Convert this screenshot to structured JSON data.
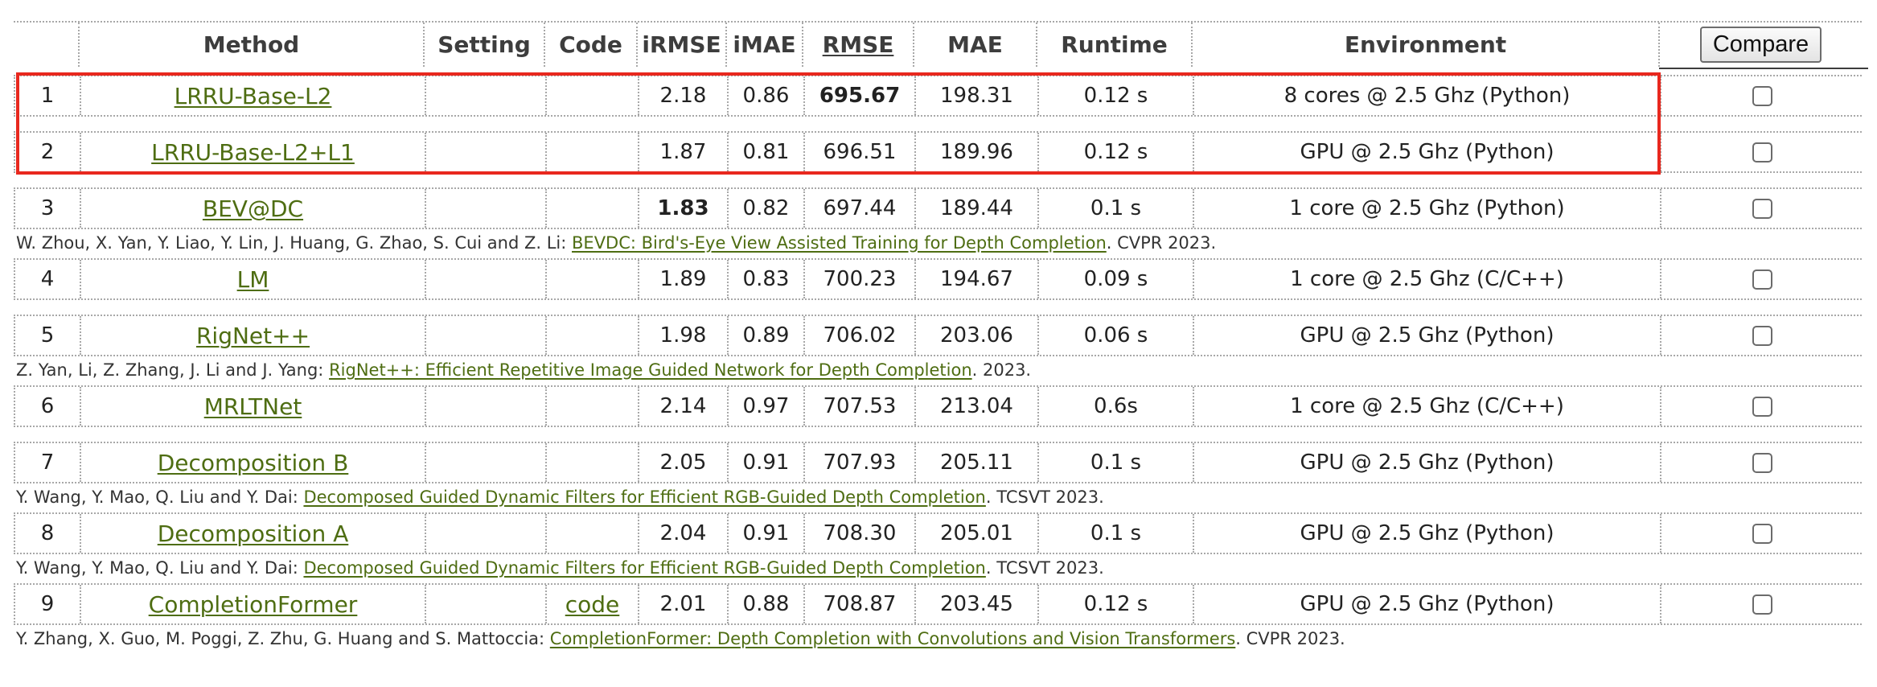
{
  "header": {
    "method": "Method",
    "setting": "Setting",
    "code": "Code",
    "irmse": "iRMSE",
    "imae": "iMAE",
    "rmse": "RMSE",
    "mae": "MAE",
    "runtime": "Runtime",
    "environment": "Environment",
    "compare_label": "Compare"
  },
  "rows": [
    {
      "rank": "1",
      "method": "LRRU-Base-L2",
      "setting": "",
      "code": "",
      "irmse": "2.18",
      "imae": "0.86",
      "rmse": "695.67",
      "mae": "198.31",
      "runtime": "0.12 s",
      "environment": "8 cores @ 2.5 Ghz (Python)",
      "citation": null,
      "highlighted": true
    },
    {
      "rank": "2",
      "method": "LRRU-Base-L2+L1",
      "setting": "",
      "code": "",
      "irmse": "1.87",
      "imae": "0.81",
      "rmse": "696.51",
      "mae": "189.96",
      "runtime": "0.12 s",
      "environment": "GPU @ 2.5 Ghz (Python)",
      "citation": null,
      "highlighted": true
    },
    {
      "rank": "3",
      "method": "BEV@DC",
      "setting": "",
      "code": "",
      "irmse": "1.83",
      "imae": "0.82",
      "rmse": "697.44",
      "mae": "189.44",
      "runtime": "0.1 s",
      "environment": "1 core @ 2.5 Ghz (Python)",
      "citation": {
        "authors": "W. Zhou, X. Yan, Y. Liao, Y. Lin, J. Huang, G. Zhao, S. Cui and Z. Li: ",
        "title": "BEVDC: Bird's-Eye View Assisted Training for Depth Completion",
        "venue": ". CVPR 2023."
      }
    },
    {
      "rank": "4",
      "method": "LM",
      "setting": "",
      "code": "",
      "irmse": "1.89",
      "imae": "0.83",
      "rmse": "700.23",
      "mae": "194.67",
      "runtime": "0.09 s",
      "environment": "1 core @ 2.5 Ghz (C/C++)",
      "citation": null
    },
    {
      "rank": "5",
      "method": "RigNet++",
      "setting": "",
      "code": "",
      "irmse": "1.98",
      "imae": "0.89",
      "rmse": "706.02",
      "mae": "203.06",
      "runtime": "0.06 s",
      "environment": "GPU @ 2.5 Ghz (Python)",
      "citation": {
        "authors": "Z. Yan, Li, Z. Zhang, J. Li and J. Yang: ",
        "title": "RigNet++: Efficient Repetitive Image Guided Network for Depth Completion",
        "venue": ". 2023."
      }
    },
    {
      "rank": "6",
      "method": "MRLTNet",
      "setting": "",
      "code": "",
      "irmse": "2.14",
      "imae": "0.97",
      "rmse": "707.53",
      "mae": "213.04",
      "runtime": "0.6s",
      "environment": "1 core @ 2.5 Ghz (C/C++)",
      "citation": null
    },
    {
      "rank": "7",
      "method": "Decomposition B",
      "setting": "",
      "code": "",
      "irmse": "2.05",
      "imae": "0.91",
      "rmse": "707.93",
      "mae": "205.11",
      "runtime": "0.1 s",
      "environment": "GPU @ 2.5 Ghz (Python)",
      "citation": {
        "authors": "Y. Wang, Y. Mao, Q. Liu and Y. Dai: ",
        "title": "Decomposed Guided Dynamic Filters for Efficient RGB-Guided Depth Completion",
        "venue": ". TCSVT 2023."
      }
    },
    {
      "rank": "8",
      "method": "Decomposition A",
      "setting": "",
      "code": "",
      "irmse": "2.04",
      "imae": "0.91",
      "rmse": "708.30",
      "mae": "205.01",
      "runtime": "0.1 s",
      "environment": "GPU @ 2.5 Ghz (Python)",
      "citation": {
        "authors": "Y. Wang, Y. Mao, Q. Liu and Y. Dai: ",
        "title": "Decomposed Guided Dynamic Filters for Efficient RGB-Guided Depth Completion",
        "venue": ". TCSVT 2023."
      }
    },
    {
      "rank": "9",
      "method": "CompletionFormer",
      "setting": "",
      "code": "code",
      "irmse": "2.01",
      "imae": "0.88",
      "rmse": "708.87",
      "mae": "203.45",
      "runtime": "0.12 s",
      "environment": "GPU @ 2.5 Ghz (Python)",
      "citation": {
        "authors": "Y. Zhang, X. Guo, M. Poggi, Z. Zhu, G. Huang and S. Mattoccia: ",
        "title": "CompletionFormer: Depth Completion with Convolutions and Vision Transformers",
        "venue": ". CVPR 2023."
      }
    }
  ],
  "bold_cells": {
    "rmse_rank": "1",
    "irmse_rank": "3"
  },
  "colors": {
    "link": "#4e6d12",
    "sort_header": "#e0262b",
    "highlight_box": "#e8281e"
  }
}
